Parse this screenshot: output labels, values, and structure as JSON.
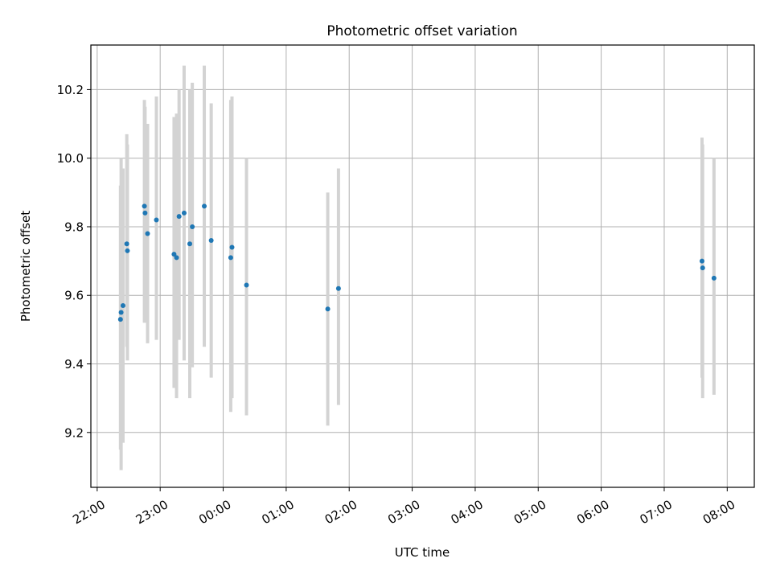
{
  "chart_data": {
    "type": "scatter",
    "title": "Photometric offset variation",
    "xlabel": "UTC time",
    "ylabel": "Photometric offset",
    "x_unit": "hours (UTC, continuing past midnight; 24 = 00:00)",
    "xlim": [
      21.9,
      32.43
    ],
    "ylim": [
      9.04,
      10.33
    ],
    "grid": true,
    "x_ticks": [
      22,
      23,
      24,
      25,
      26,
      27,
      28,
      29,
      30,
      31,
      32
    ],
    "x_tick_labels": [
      "22:00",
      "23:00",
      "00:00",
      "01:00",
      "02:00",
      "03:00",
      "04:00",
      "05:00",
      "06:00",
      "07:00",
      "08:00"
    ],
    "y_ticks": [
      9.2,
      9.4,
      9.6,
      9.8,
      10.0,
      10.2
    ],
    "y_tick_labels": [
      "9.2",
      "9.4",
      "9.6",
      "9.8",
      "10.0",
      "10.2"
    ],
    "marker_color": "#1f77b4",
    "errorbar_color": "#d3d3d3",
    "points": [
      {
        "x": 22.37,
        "y": 9.53,
        "ylow": 9.15,
        "yhigh": 9.92
      },
      {
        "x": 22.38,
        "y": 9.55,
        "ylow": 9.09,
        "yhigh": 10.0
      },
      {
        "x": 22.41,
        "y": 9.57,
        "ylow": 9.17,
        "yhigh": 9.97
      },
      {
        "x": 22.47,
        "y": 9.75,
        "ylow": 9.45,
        "yhigh": 10.07
      },
      {
        "x": 22.48,
        "y": 9.73,
        "ylow": 9.41,
        "yhigh": 10.04
      },
      {
        "x": 22.75,
        "y": 9.86,
        "ylow": 9.52,
        "yhigh": 10.17
      },
      {
        "x": 22.76,
        "y": 9.84,
        "ylow": 9.54,
        "yhigh": 10.15
      },
      {
        "x": 22.8,
        "y": 9.78,
        "ylow": 9.46,
        "yhigh": 10.1
      },
      {
        "x": 22.94,
        "y": 9.82,
        "ylow": 9.47,
        "yhigh": 10.18
      },
      {
        "x": 23.22,
        "y": 9.72,
        "ylow": 9.33,
        "yhigh": 10.12
      },
      {
        "x": 23.26,
        "y": 9.71,
        "ylow": 9.3,
        "yhigh": 10.13
      },
      {
        "x": 23.3,
        "y": 9.83,
        "ylow": 9.47,
        "yhigh": 10.2
      },
      {
        "x": 23.38,
        "y": 9.84,
        "ylow": 9.41,
        "yhigh": 10.27
      },
      {
        "x": 23.47,
        "y": 9.75,
        "ylow": 9.3,
        "yhigh": 10.2
      },
      {
        "x": 23.51,
        "y": 9.8,
        "ylow": 9.39,
        "yhigh": 10.22
      },
      {
        "x": 23.7,
        "y": 9.86,
        "ylow": 9.45,
        "yhigh": 10.27
      },
      {
        "x": 23.81,
        "y": 9.76,
        "ylow": 9.36,
        "yhigh": 10.16
      },
      {
        "x": 24.12,
        "y": 9.71,
        "ylow": 9.26,
        "yhigh": 10.17
      },
      {
        "x": 24.14,
        "y": 9.74,
        "ylow": 9.3,
        "yhigh": 10.18
      },
      {
        "x": 24.37,
        "y": 9.63,
        "ylow": 9.25,
        "yhigh": 10.0
      },
      {
        "x": 25.66,
        "y": 9.56,
        "ylow": 9.22,
        "yhigh": 9.9
      },
      {
        "x": 25.83,
        "y": 9.62,
        "ylow": 9.28,
        "yhigh": 9.97
      },
      {
        "x": 31.6,
        "y": 9.7,
        "ylow": 9.36,
        "yhigh": 10.06
      },
      {
        "x": 31.61,
        "y": 9.68,
        "ylow": 9.3,
        "yhigh": 10.04
      },
      {
        "x": 31.79,
        "y": 9.65,
        "ylow": 9.31,
        "yhigh": 10.0
      }
    ]
  }
}
